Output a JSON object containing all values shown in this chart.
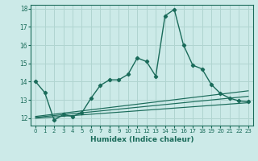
{
  "xlabel": "Humidex (Indice chaleur)",
  "bg_color": "#cceae8",
  "grid_color": "#b0d4d0",
  "line_color": "#1a6b5a",
  "xlim": [
    -0.5,
    23.5
  ],
  "ylim": [
    11.6,
    18.2
  ],
  "yticks": [
    12,
    13,
    14,
    15,
    16,
    17,
    18
  ],
  "xticks": [
    0,
    1,
    2,
    3,
    4,
    5,
    6,
    7,
    8,
    9,
    10,
    11,
    12,
    13,
    14,
    15,
    16,
    17,
    18,
    19,
    20,
    21,
    22,
    23
  ],
  "main_line_x": [
    0,
    1,
    2,
    3,
    4,
    5,
    6,
    7,
    8,
    9,
    10,
    11,
    12,
    13,
    14,
    15,
    16,
    17,
    18,
    19,
    20,
    21,
    22,
    23
  ],
  "main_line_y": [
    14.0,
    13.4,
    11.9,
    12.2,
    12.1,
    12.3,
    13.1,
    13.8,
    14.1,
    14.1,
    14.4,
    15.3,
    15.1,
    14.3,
    17.6,
    17.95,
    16.0,
    14.9,
    14.7,
    13.85,
    13.35,
    13.1,
    12.95,
    12.9
  ],
  "line2_x": [
    0,
    23
  ],
  "line2_y": [
    12.05,
    13.2
  ],
  "line3_x": [
    0,
    23
  ],
  "line3_y": [
    12.0,
    12.85
  ],
  "line4_x": [
    0,
    23
  ],
  "line4_y": [
    12.1,
    13.5
  ]
}
